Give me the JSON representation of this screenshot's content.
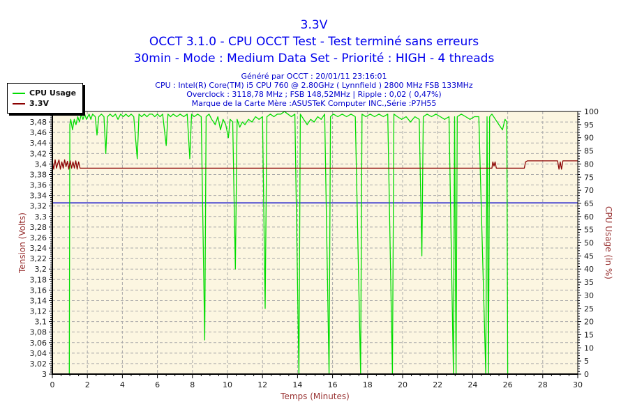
{
  "header": {
    "title": "3.3V",
    "subtitle1": "OCCT 3.1.0 - CPU OCCT Test - Test terminé sans erreurs",
    "subtitle2": "30min - Mode : Medium Data Set - Priorité : HIGH - 4 threads",
    "generated": "Généré par OCCT : 20/01/11 23:16:01",
    "cpu": "CPU : Intel(R) Core(TM) i5 CPU 760 @ 2.80GHz ( Lynnfield ) 2800 MHz FSB 133MHz",
    "overclock": "Overclock : 3118,78 MHz ; FSB 148,52MHz | Ripple : 0,02 ( 0,47%)",
    "motherboard": "Marque de la Carte Mère :ASUSTeK Computer INC.,Série :P7H55",
    "title_color": "#0000EE",
    "info_color": "#0000CD"
  },
  "chart_data": {
    "type": "line",
    "title": "3.3V",
    "plot_bg": "#FCF6E1",
    "grid_color": "#A9A9A9",
    "axis_color": "#000000",
    "tick_label_color": "#1A1A1A",
    "axis_title_color": "#993333",
    "x_axis": {
      "label": "Temps (Minutes)",
      "min": 0,
      "max": 30,
      "major_step": 2,
      "minor_step": 0.5
    },
    "y_left": {
      "label": "Tension (Volts)",
      "min": 3,
      "max": 3.5,
      "major_step": 0.02,
      "minor_step": 0.004,
      "decimal": "comma"
    },
    "y_right": {
      "label": "CPU Usage (in %)",
      "min": 0,
      "max": 100,
      "major_step": 5,
      "minor_step": 1
    },
    "marker_line": {
      "axis": "left",
      "value": 3.326,
      "color": "#0000C8"
    },
    "series": [
      {
        "name": "CPU Usage",
        "color": "#00DC00",
        "axis": "right",
        "points": [
          [
            0,
            0
          ],
          [
            0.97,
            0
          ],
          [
            1.0,
            95
          ],
          [
            1.05,
            97
          ],
          [
            1.15,
            93
          ],
          [
            1.25,
            97
          ],
          [
            1.35,
            95
          ],
          [
            1.45,
            98
          ],
          [
            1.55,
            96
          ],
          [
            1.65,
            99
          ],
          [
            1.75,
            97
          ],
          [
            1.85,
            99
          ],
          [
            1.95,
            97
          ],
          [
            2.1,
            99
          ],
          [
            2.2,
            97
          ],
          [
            2.3,
            99
          ],
          [
            2.45,
            98
          ],
          [
            2.55,
            91
          ],
          [
            2.65,
            98
          ],
          [
            2.8,
            99
          ],
          [
            2.95,
            98
          ],
          [
            3.05,
            84
          ],
          [
            3.15,
            98
          ],
          [
            3.3,
            99
          ],
          [
            3.45,
            98
          ],
          [
            3.6,
            99
          ],
          [
            3.75,
            97
          ],
          [
            3.9,
            99
          ],
          [
            4.05,
            98
          ],
          [
            4.2,
            99
          ],
          [
            4.35,
            98
          ],
          [
            4.5,
            99
          ],
          [
            4.65,
            98
          ],
          [
            4.85,
            82
          ],
          [
            4.95,
            99
          ],
          [
            5.1,
            98
          ],
          [
            5.25,
            99
          ],
          [
            5.4,
            98
          ],
          [
            5.55,
            99
          ],
          [
            5.7,
            99
          ],
          [
            5.85,
            98
          ],
          [
            6.0,
            99
          ],
          [
            6.15,
            98
          ],
          [
            6.3,
            99
          ],
          [
            6.5,
            87
          ],
          [
            6.6,
            99
          ],
          [
            6.75,
            98
          ],
          [
            6.9,
            99
          ],
          [
            7.1,
            98
          ],
          [
            7.3,
            99
          ],
          [
            7.5,
            98
          ],
          [
            7.7,
            99
          ],
          [
            7.85,
            82
          ],
          [
            7.95,
            99
          ],
          [
            8.1,
            98
          ],
          [
            8.3,
            99
          ],
          [
            8.5,
            98
          ],
          [
            8.7,
            13
          ],
          [
            8.78,
            98
          ],
          [
            8.95,
            99
          ],
          [
            9.1,
            97
          ],
          [
            9.3,
            95
          ],
          [
            9.45,
            98
          ],
          [
            9.6,
            93
          ],
          [
            9.75,
            97
          ],
          [
            9.9,
            95
          ],
          [
            10.05,
            90
          ],
          [
            10.15,
            97
          ],
          [
            10.3,
            96
          ],
          [
            10.45,
            40
          ],
          [
            10.55,
            97
          ],
          [
            10.7,
            94
          ],
          [
            10.85,
            96
          ],
          [
            11.0,
            95
          ],
          [
            11.2,
            97
          ],
          [
            11.4,
            96
          ],
          [
            11.6,
            98
          ],
          [
            11.8,
            97
          ],
          [
            12.0,
            98
          ],
          [
            12.15,
            25
          ],
          [
            12.25,
            98
          ],
          [
            12.45,
            99
          ],
          [
            12.65,
            98
          ],
          [
            12.85,
            99
          ],
          [
            13.05,
            99
          ],
          [
            13.25,
            100
          ],
          [
            13.45,
            99
          ],
          [
            13.65,
            98
          ],
          [
            13.85,
            99
          ],
          [
            14.08,
            0
          ],
          [
            14.16,
            99
          ],
          [
            14.35,
            97
          ],
          [
            14.55,
            95
          ],
          [
            14.75,
            97
          ],
          [
            14.95,
            96
          ],
          [
            15.15,
            98
          ],
          [
            15.35,
            97
          ],
          [
            15.55,
            99
          ],
          [
            15.8,
            0
          ],
          [
            15.88,
            98
          ],
          [
            16.05,
            99
          ],
          [
            16.3,
            98
          ],
          [
            16.55,
            99
          ],
          [
            16.8,
            98
          ],
          [
            17.05,
            99
          ],
          [
            17.3,
            98
          ],
          [
            17.6,
            0
          ],
          [
            17.68,
            99
          ],
          [
            17.9,
            98
          ],
          [
            18.15,
            99
          ],
          [
            18.4,
            98
          ],
          [
            18.65,
            99
          ],
          [
            18.9,
            98
          ],
          [
            19.15,
            99
          ],
          [
            19.42,
            0
          ],
          [
            19.5,
            99
          ],
          [
            19.7,
            98
          ],
          [
            19.95,
            97
          ],
          [
            20.2,
            98
          ],
          [
            20.45,
            96
          ],
          [
            20.7,
            98
          ],
          [
            20.95,
            97
          ],
          [
            21.1,
            45
          ],
          [
            21.18,
            98
          ],
          [
            21.4,
            99
          ],
          [
            21.65,
            98
          ],
          [
            21.9,
            99
          ],
          [
            22.15,
            98
          ],
          [
            22.4,
            97
          ],
          [
            22.65,
            98
          ],
          [
            22.9,
            0
          ],
          [
            22.97,
            98
          ],
          [
            23.05,
            0
          ],
          [
            23.12,
            98
          ],
          [
            23.35,
            99
          ],
          [
            23.6,
            98
          ],
          [
            23.85,
            97
          ],
          [
            24.1,
            98
          ],
          [
            24.35,
            98
          ],
          [
            24.75,
            0
          ],
          [
            24.82,
            98
          ],
          [
            24.9,
            0
          ],
          [
            24.97,
            98
          ],
          [
            25.1,
            99
          ],
          [
            25.3,
            97
          ],
          [
            25.5,
            95
          ],
          [
            25.7,
            93
          ],
          [
            25.85,
            97
          ],
          [
            25.95,
            96
          ],
          [
            26.0,
            0
          ]
        ]
      },
      {
        "name": "3.3V",
        "color": "#8B0000",
        "axis": "left",
        "points": [
          [
            0,
            3.405
          ],
          [
            0.08,
            3.39
          ],
          [
            0.16,
            3.408
          ],
          [
            0.24,
            3.392
          ],
          [
            0.3,
            3.4
          ],
          [
            0.38,
            3.408
          ],
          [
            0.46,
            3.39
          ],
          [
            0.54,
            3.404
          ],
          [
            0.62,
            3.392
          ],
          [
            0.7,
            3.408
          ],
          [
            0.78,
            3.395
          ],
          [
            0.86,
            3.405
          ],
          [
            0.94,
            3.39
          ],
          [
            1.02,
            3.406
          ],
          [
            1.1,
            3.392
          ],
          [
            1.18,
            3.404
          ],
          [
            1.26,
            3.392
          ],
          [
            1.34,
            3.406
          ],
          [
            1.42,
            3.39
          ],
          [
            1.5,
            3.404
          ],
          [
            1.58,
            3.392
          ],
          [
            1.65,
            3.392
          ],
          [
            25.1,
            3.392
          ],
          [
            25.15,
            3.404
          ],
          [
            25.22,
            3.396
          ],
          [
            25.28,
            3.404
          ],
          [
            25.35,
            3.392
          ],
          [
            26.95,
            3.392
          ],
          [
            27.02,
            3.404
          ],
          [
            27.12,
            3.406
          ],
          [
            28.85,
            3.406
          ],
          [
            28.93,
            3.39
          ],
          [
            29.0,
            3.404
          ],
          [
            29.07,
            3.39
          ],
          [
            29.15,
            3.406
          ],
          [
            30,
            3.406
          ]
        ]
      }
    ]
  }
}
